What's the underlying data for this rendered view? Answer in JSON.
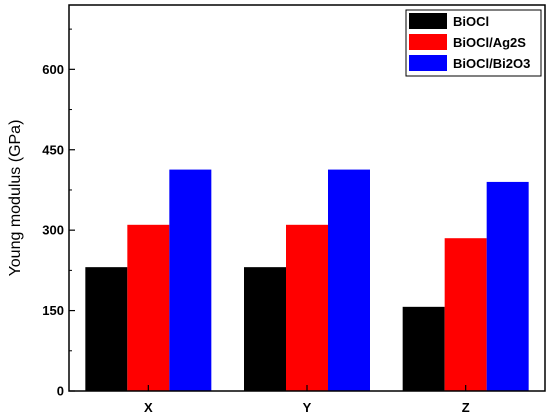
{
  "chart_data": {
    "type": "bar",
    "categories": [
      "X",
      "Y",
      "Z"
    ],
    "series": [
      {
        "name": "BiOCl",
        "color": "#000000",
        "values": [
          231,
          231,
          157
        ]
      },
      {
        "name": "BiOCl/Ag2S",
        "color": "#ff0000",
        "values": [
          310,
          310,
          285
        ]
      },
      {
        "name": "BiOCl/Bi2O3",
        "color": "#0000ff",
        "values": [
          413,
          413,
          390
        ]
      }
    ],
    "title": "",
    "xlabel": "",
    "ylabel": "Young modulus (GPa)",
    "ylim": [
      0,
      720
    ],
    "yticks": [
      0,
      150,
      300,
      450,
      600
    ],
    "grid": false,
    "legend_position": "top-right"
  }
}
